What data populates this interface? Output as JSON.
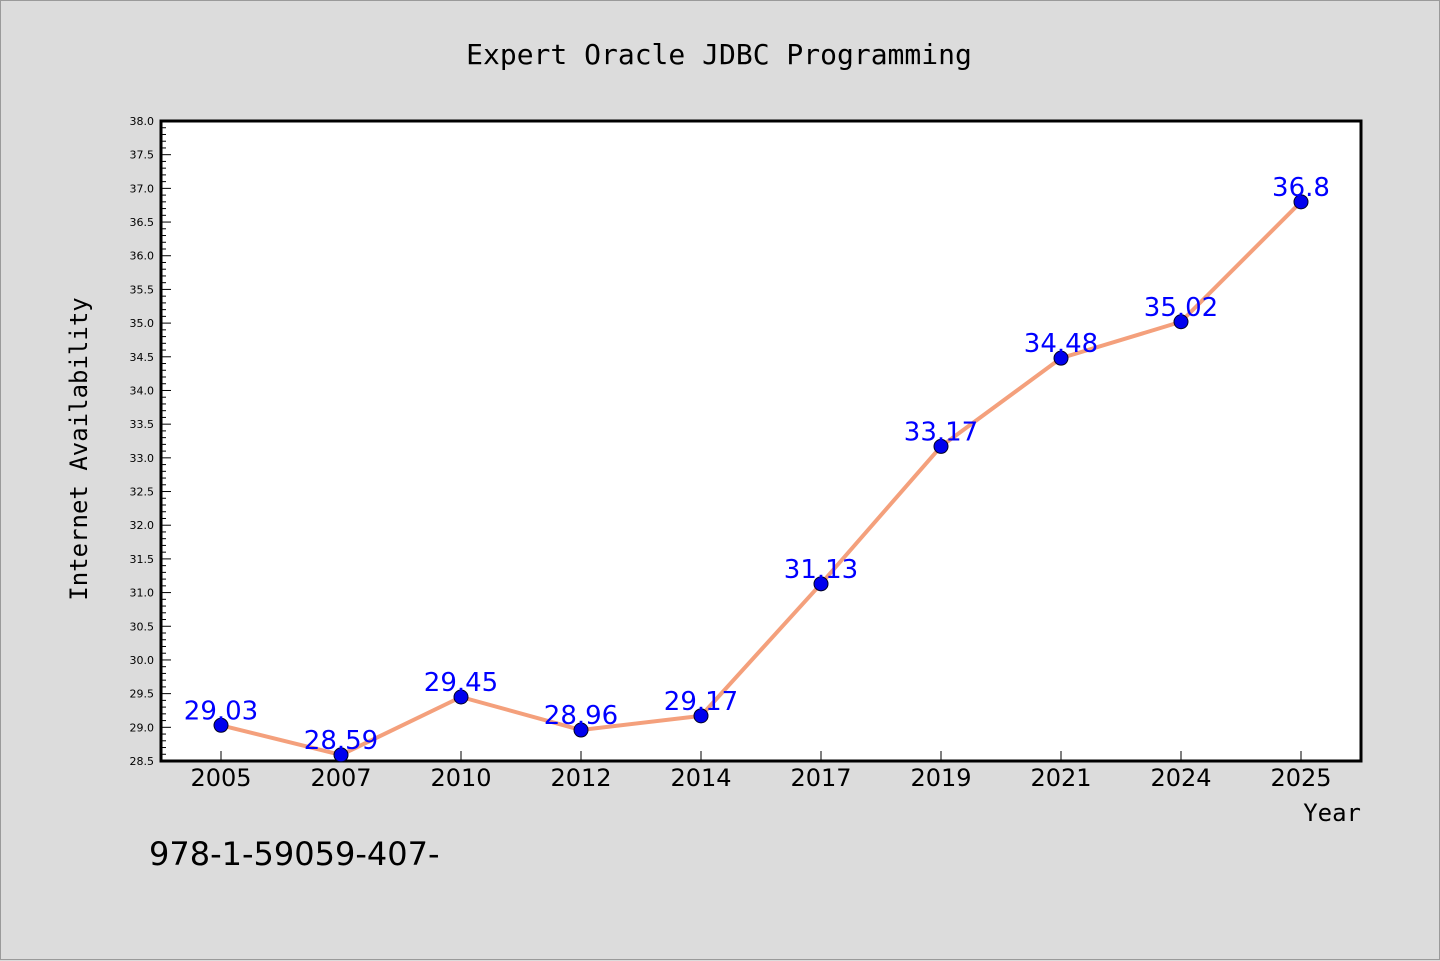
{
  "chart_data": {
    "type": "line",
    "title": "Expert Oracle JDBC Programming",
    "xlabel": "Year",
    "ylabel": "Internet Availability",
    "categories": [
      "2005",
      "2007",
      "2010",
      "2012",
      "2014",
      "2017",
      "2019",
      "2021",
      "2024",
      "2025"
    ],
    "series": [
      {
        "values": [
          29.03,
          28.59,
          29.45,
          28.96,
          29.17,
          31.13,
          33.17,
          34.48,
          35.02,
          36.8
        ],
        "labels": [
          "29.03",
          "28.59",
          "29.45",
          "28.96",
          "29.17",
          "31.13",
          "33.17",
          "34.48",
          "35.02",
          "36.8"
        ]
      }
    ],
    "ylim": [
      28.5,
      38.0
    ],
    "yticks": [
      "28.5",
      "29.0",
      "29.5",
      "30.0",
      "30.5",
      "31.0",
      "31.5",
      "32.0",
      "32.5",
      "33.0",
      "33.5",
      "34.0",
      "34.5",
      "35.0",
      "35.5",
      "36.0",
      "36.5",
      "37.0",
      "37.5",
      "38.0"
    ],
    "grid": false,
    "legend": "none",
    "line_color": "#f4a07c",
    "marker_color": "#0000ee",
    "label_color": "#0000ff",
    "background": "#dcdcdc",
    "plot_background": "#ffffff"
  },
  "footnote": "978-1-59059-407-"
}
